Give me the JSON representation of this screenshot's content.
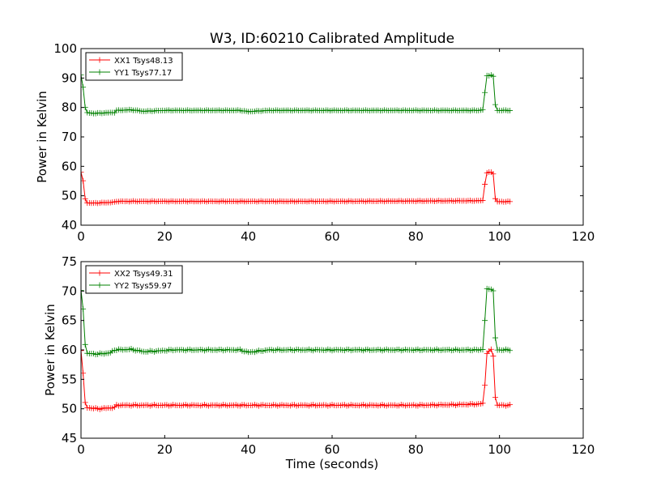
{
  "figure": {
    "title": "W3, ID:60210 Calibrated Amplitude"
  },
  "colors": {
    "xx": "#ff0000",
    "yy": "#008000",
    "axes": "#000000",
    "background": "#ffffff"
  },
  "chart_data": [
    {
      "type": "line",
      "title": "W3, ID:60210 Calibrated Amplitude",
      "xlabel": "",
      "ylabel": "Power in Kelvin",
      "xlim": [
        0,
        120
      ],
      "ylim": [
        40,
        100
      ],
      "xticks": [
        0,
        20,
        40,
        60,
        80,
        100,
        120
      ],
      "yticks": [
        40,
        50,
        60,
        70,
        80,
        90,
        100
      ],
      "grid": false,
      "legend_position": "top-left",
      "marker": "plus",
      "series": [
        {
          "name": "XX1 Tsys48.13",
          "color": "#ff0000",
          "baseline": 48.0,
          "x_start": 0,
          "x_end": 102.5,
          "x_step": 0.5,
          "keypoints": [
            [
              0,
              58
            ],
            [
              0.5,
              55
            ],
            [
              1,
              49
            ],
            [
              1.5,
              47.6
            ],
            [
              3,
              47.5
            ],
            [
              8,
              47.8
            ],
            [
              8.5,
              48.1
            ],
            [
              40,
              48.1
            ],
            [
              60,
              48.1
            ],
            [
              80,
              48.2
            ],
            [
              95,
              48.3
            ],
            [
              96,
              48.4
            ],
            [
              96.5,
              54
            ],
            [
              97,
              57.8
            ],
            [
              98,
              58
            ],
            [
              98.5,
              57.5
            ],
            [
              99,
              49
            ],
            [
              99.5,
              48
            ],
            [
              102.5,
              48
            ]
          ]
        },
        {
          "name": "YY1 Tsys77.17",
          "color": "#008000",
          "baseline": 79.0,
          "x_start": 0,
          "x_end": 102.5,
          "x_step": 0.5,
          "keypoints": [
            [
              0,
              91
            ],
            [
              0.5,
              87
            ],
            [
              1,
              80
            ],
            [
              1.5,
              78.2
            ],
            [
              3,
              78
            ],
            [
              8,
              78.3
            ],
            [
              8.5,
              79
            ],
            [
              12,
              79.2
            ],
            [
              15,
              78.7
            ],
            [
              20,
              79
            ],
            [
              38,
              79
            ],
            [
              40,
              78.6
            ],
            [
              45,
              79
            ],
            [
              80,
              79
            ],
            [
              95,
              79
            ],
            [
              96,
              79.2
            ],
            [
              96.5,
              85
            ],
            [
              97,
              90.8
            ],
            [
              98,
              91
            ],
            [
              98.5,
              90.5
            ],
            [
              99,
              81
            ],
            [
              99.5,
              79
            ],
            [
              102.5,
              79
            ]
          ]
        }
      ]
    },
    {
      "type": "line",
      "title": "",
      "xlabel": "Time (seconds)",
      "ylabel": "Power in Kelvin",
      "xlim": [
        0,
        120
      ],
      "ylim": [
        45,
        75
      ],
      "xticks": [
        0,
        20,
        40,
        60,
        80,
        100,
        120
      ],
      "yticks": [
        45,
        50,
        55,
        60,
        65,
        70,
        75
      ],
      "grid": false,
      "legend_position": "top-left",
      "marker": "plus",
      "series": [
        {
          "name": "XX2 Tsys49.31",
          "color": "#ff0000",
          "baseline": 50.6,
          "x_start": 0,
          "x_end": 102.5,
          "x_step": 0.5,
          "keypoints": [
            [
              0,
              60
            ],
            [
              0.5,
              56
            ],
            [
              1,
              51
            ],
            [
              1.5,
              50.2
            ],
            [
              4,
              50
            ],
            [
              8,
              50.2
            ],
            [
              8.5,
              50.6
            ],
            [
              40,
              50.6
            ],
            [
              80,
              50.6
            ],
            [
              90,
              50.7
            ],
            [
              95,
              50.8
            ],
            [
              96,
              50.9
            ],
            [
              96.5,
              54
            ],
            [
              97,
              59.5
            ],
            [
              98,
              60
            ],
            [
              98.5,
              59
            ],
            [
              99,
              52
            ],
            [
              99.5,
              50.6
            ],
            [
              102.5,
              50.6
            ]
          ]
        },
        {
          "name": "YY2 Tsys59.97",
          "color": "#008000",
          "baseline": 60.0,
          "x_start": 0,
          "x_end": 102.5,
          "x_step": 0.5,
          "keypoints": [
            [
              0,
              70
            ],
            [
              0.5,
              67
            ],
            [
              1,
              61
            ],
            [
              1.5,
              59.4
            ],
            [
              4,
              59.3
            ],
            [
              7,
              59.5
            ],
            [
              8,
              60
            ],
            [
              12,
              60.1
            ],
            [
              15,
              59.7
            ],
            [
              18,
              59.8
            ],
            [
              22,
              60
            ],
            [
              38,
              60
            ],
            [
              40,
              59.6
            ],
            [
              45,
              60
            ],
            [
              80,
              60
            ],
            [
              95,
              60
            ],
            [
              96,
              60.1
            ],
            [
              96.5,
              65
            ],
            [
              97,
              70.3
            ],
            [
              98,
              70.4
            ],
            [
              98.5,
              70
            ],
            [
              99,
              62
            ],
            [
              99.5,
              60
            ],
            [
              102.5,
              60
            ]
          ]
        }
      ]
    }
  ]
}
